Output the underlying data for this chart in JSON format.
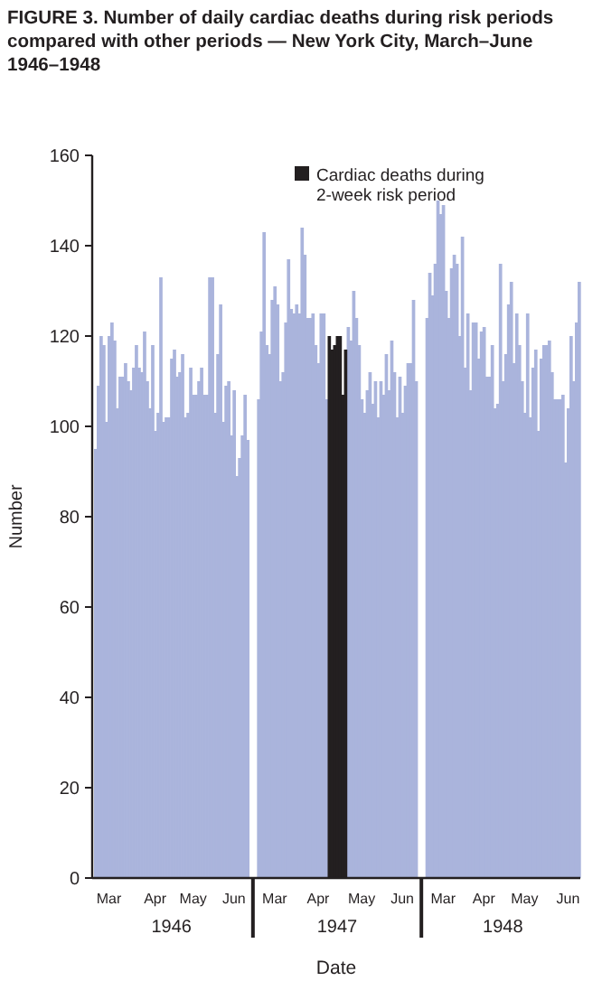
{
  "chart_data": {
    "type": "bar",
    "title": "FIGURE 3. Number of daily cardiac deaths during risk periods compared with other periods — New York City, March–June 1946–1948",
    "xlabel": "Date",
    "ylabel": "Number",
    "legend": "top",
    "ylim": [
      0,
      160
    ],
    "yticks": [
      0,
      20,
      40,
      60,
      80,
      100,
      120,
      140,
      160
    ],
    "annotations": [
      "1946",
      "1947",
      "1948"
    ],
    "categories": [
      null,
      null,
      null,
      null,
      null,
      "Mar",
      null,
      null,
      null,
      null,
      null,
      null,
      null,
      null,
      null,
      null,
      null,
      null,
      null,
      null,
      null,
      null,
      "Apr",
      null,
      null,
      null,
      null,
      null,
      null,
      null,
      null,
      null,
      null,
      null,
      null,
      null,
      "May",
      null,
      null,
      null,
      null,
      null,
      null,
      null,
      null,
      null,
      null,
      null,
      null,
      null,
      null,
      "Jun",
      null,
      null,
      null,
      null,
      null,
      null,
      null,
      null,
      null,
      null,
      null,
      null,
      null,
      null,
      "Mar",
      null,
      null,
      null,
      null,
      null,
      null,
      null,
      null,
      null,
      null,
      null,
      null,
      null,
      null,
      null,
      "Apr",
      null,
      null,
      null,
      null,
      null,
      null,
      null,
      null,
      null,
      null,
      null,
      null,
      null,
      null,
      null,
      "May",
      null,
      null,
      null,
      null,
      null,
      null,
      null,
      null,
      null,
      null,
      null,
      null,
      null,
      null,
      "Jun",
      null,
      null,
      null,
      null,
      null,
      null,
      null,
      null,
      null,
      null,
      null,
      null,
      null,
      null,
      "Mar",
      null,
      null,
      null,
      null,
      null,
      null,
      null,
      null,
      null,
      null,
      null,
      null,
      null,
      null,
      "Apr",
      null,
      null,
      null,
      null,
      null,
      null,
      null,
      null,
      null,
      null,
      null,
      null,
      null,
      null,
      "May",
      null,
      null,
      null,
      null,
      null,
      null,
      null,
      null,
      null,
      null,
      null,
      null,
      null,
      null,
      null,
      "Jun",
      null,
      null,
      null,
      null
    ],
    "series": [
      {
        "color": "#aab4dc",
        "values": [
          95,
          109,
          120,
          118,
          101,
          120,
          123,
          119,
          104,
          111,
          111,
          114,
          110,
          108,
          113,
          118,
          113,
          112,
          121,
          110,
          104,
          118,
          99,
          103,
          133,
          101,
          102,
          102,
          115,
          117,
          111,
          112,
          116,
          102,
          103,
          113,
          107,
          107,
          110,
          113,
          107,
          107,
          133,
          133,
          103,
          116,
          127,
          101,
          109,
          110,
          98,
          108,
          89,
          93,
          98,
          107,
          97,
          null,
          null,
          null,
          106,
          121,
          143,
          118,
          116,
          128,
          131,
          127,
          110,
          112,
          123,
          137,
          126,
          125,
          127,
          125,
          144,
          138,
          124,
          124,
          125,
          118,
          114,
          125,
          125,
          106,
          null,
          null,
          null,
          null,
          null,
          null,
          null,
          122,
          119,
          130,
          124,
          118,
          106,
          103,
          108,
          112,
          105,
          110,
          102,
          110,
          107,
          116,
          108,
          119,
          112,
          102,
          111,
          103,
          109,
          114,
          114,
          128,
          110,
          null,
          null,
          null,
          124,
          134,
          129,
          136,
          150,
          147,
          149,
          130,
          124,
          135,
          138,
          136,
          120,
          142,
          113,
          125,
          108,
          123,
          123,
          115,
          121,
          122,
          111,
          111,
          118,
          104,
          105,
          136,
          110,
          116,
          127,
          132,
          114,
          125,
          118,
          110,
          103,
          125,
          102,
          113,
          117,
          99,
          115,
          118,
          118,
          119,
          112,
          106,
          106,
          106,
          107,
          92,
          104,
          120,
          110,
          123,
          132
        ]
      },
      {
        "name": "Cardiac deaths during 2-week risk period",
        "color": "#231f20",
        "values": [
          null,
          null,
          null,
          null,
          null,
          null,
          null,
          null,
          null,
          null,
          null,
          null,
          null,
          null,
          null,
          null,
          null,
          null,
          null,
          null,
          null,
          null,
          null,
          null,
          null,
          null,
          null,
          null,
          null,
          null,
          null,
          null,
          null,
          null,
          null,
          null,
          null,
          null,
          null,
          null,
          null,
          null,
          null,
          null,
          null,
          null,
          null,
          null,
          null,
          null,
          null,
          null,
          null,
          null,
          null,
          null,
          null,
          null,
          null,
          null,
          null,
          null,
          null,
          null,
          null,
          null,
          null,
          null,
          null,
          null,
          null,
          null,
          null,
          null,
          null,
          null,
          null,
          null,
          null,
          null,
          null,
          null,
          null,
          null,
          null,
          null,
          120,
          117,
          118,
          120,
          120,
          107,
          117,
          null,
          null,
          null,
          null,
          null,
          null,
          null,
          null,
          null,
          null,
          null,
          null,
          null,
          null,
          null,
          null,
          null,
          null,
          null,
          null,
          null,
          null,
          null,
          null,
          null,
          null,
          null,
          null,
          null,
          null,
          null,
          null,
          null,
          null,
          null,
          null,
          null,
          null,
          null,
          null,
          null,
          null,
          null,
          null,
          null,
          null,
          null,
          null,
          null,
          null,
          null,
          null,
          null,
          null,
          null,
          null,
          null,
          null,
          null,
          null,
          null,
          null,
          null,
          null,
          null,
          null,
          null,
          null,
          null,
          null,
          null,
          null,
          null,
          null,
          null,
          null,
          null,
          null,
          null,
          null,
          null,
          null,
          null,
          null,
          null,
          null
        ]
      }
    ]
  }
}
